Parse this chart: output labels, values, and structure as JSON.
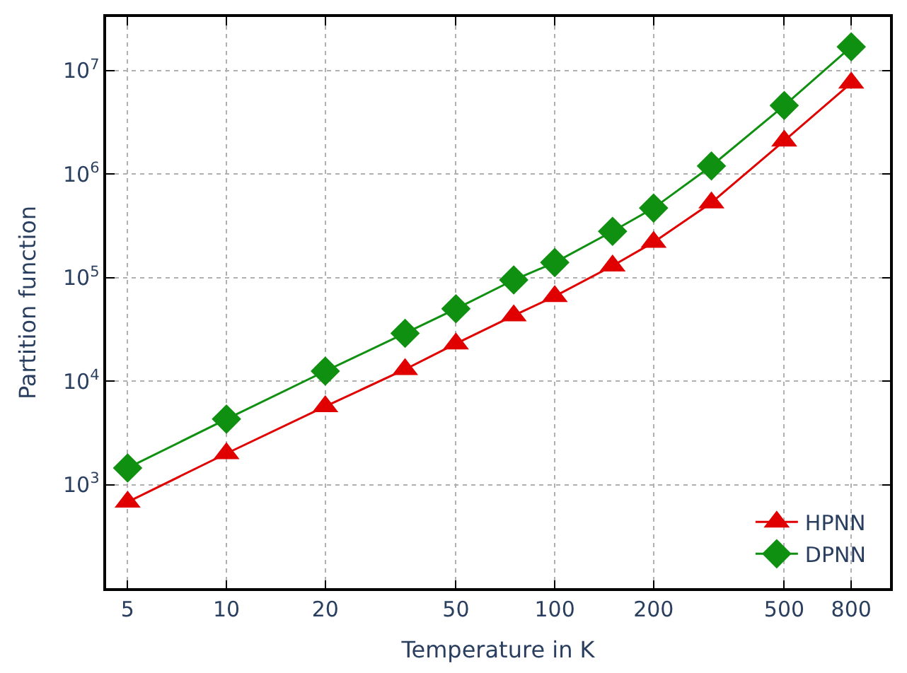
{
  "chart_data": {
    "type": "line",
    "xlabel": "Temperature in K",
    "ylabel": "Partition function",
    "x": [
      5,
      10,
      20,
      35,
      50,
      75,
      100,
      150,
      200,
      300,
      500,
      800
    ],
    "series": [
      {
        "name": "HPNN",
        "color": "#e00000",
        "marker": "triangle",
        "values": [
          680,
          2000,
          5700,
          13000,
          23000,
          43000,
          66000,
          130000,
          220000,
          530000,
          2100000,
          7600000
        ]
      },
      {
        "name": "DPNN",
        "color": "#109010",
        "marker": "diamond",
        "values": [
          1450,
          4300,
          12500,
          29000,
          50000,
          95000,
          140000,
          280000,
          470000,
          1200000,
          4600000,
          17000000
        ]
      }
    ],
    "log": "xy",
    "xlim": [
      4.3,
      1050
    ],
    "xticks": [
      5,
      10,
      20,
      50,
      100,
      200,
      500,
      800
    ],
    "ylim": [
      100,
      33000000
    ],
    "yticks": [
      {
        "value": 1000,
        "label": "10$^{3}$"
      },
      {
        "value": 10000,
        "label": "10$^{4}$"
      },
      {
        "value": 100000,
        "label": "10$^{5}$"
      },
      {
        "value": 1000000,
        "label": "10$^{6}$"
      },
      {
        "value": 10000000,
        "label": "10$^{7}$"
      }
    ],
    "grid": true,
    "legend": "bottom right",
    "line_style": "solid"
  }
}
